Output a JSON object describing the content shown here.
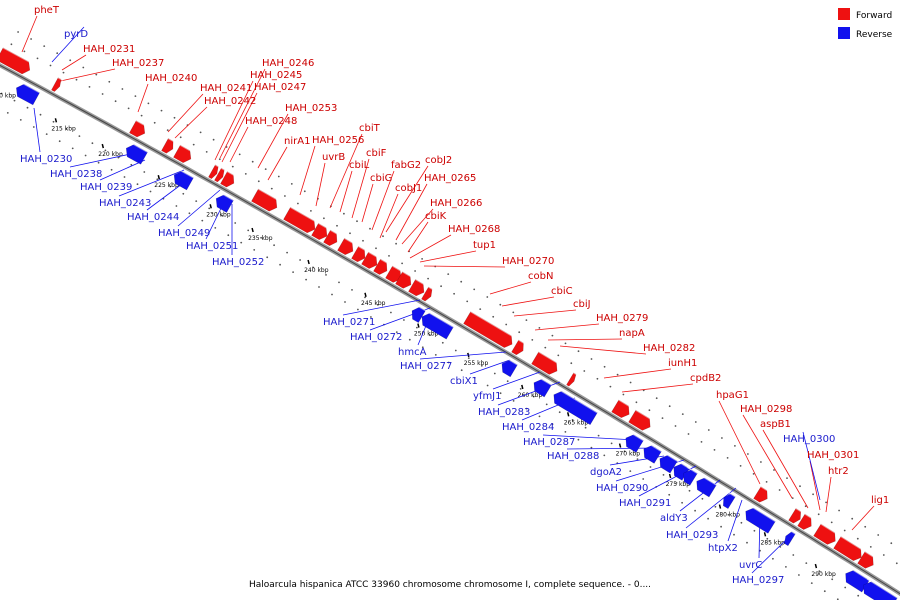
{
  "caption": "Haloarcula hispanica ATCC 33960 chromosome chromosome I, complete sequence. - 0....",
  "legend": [
    {
      "label": "Forward",
      "color": "#ee1111"
    },
    {
      "label": "Reverse",
      "color": "#1111ee"
    }
  ],
  "colors": {
    "forward": "#ee1111",
    "reverse": "#1111ee",
    "backbone": "#888888"
  },
  "ticks": [
    "210 kbp",
    "215 kbp",
    "220 kbp",
    "225 kbp",
    "230 kbp",
    "235 kbp",
    "240 kbp",
    "245 kbp",
    "250 kbp",
    "255 kbp",
    "260 kbp",
    "265 kbp",
    "270 kbp",
    "275 kbp",
    "280 kbp",
    "285 kbp",
    "290 kbp"
  ],
  "forward_labels": [
    "pheT",
    "HAH_0231",
    "HAH_0237",
    "HAH_0240",
    "HAH_0241",
    "HAH_0242",
    "HAH_0246",
    "HAH_0245",
    "HAH_0247",
    "HAH_0248",
    "HAH_0253",
    "nirA1",
    "HAH_0256",
    "uvrB",
    "cbiT",
    "cbiL",
    "cbiF",
    "cbiG",
    "fabG2",
    "cobJ2",
    "cobJ1",
    "HAH_0265",
    "HAH_0266",
    "cbiK",
    "HAH_0268",
    "tup1",
    "HAH_0270",
    "cobN",
    "cbiC",
    "cbiJ",
    "HAH_0279",
    "napA",
    "HAH_0282",
    "iunH1",
    "cpdB2",
    "hpaG1",
    "HAH_0298",
    "aspB1",
    "HAH_0301",
    "htr2",
    "lig1"
  ],
  "reverse_labels": [
    "pyrD",
    "HAH_0230",
    "HAH_0238",
    "HAH_0239",
    "HAH_0243",
    "HAH_0244",
    "HAH_0249",
    "HAH_0251",
    "HAH_0252",
    "HAH_0271",
    "HAH_0272",
    "hmcA",
    "HAH_0277",
    "cbiX1",
    "yfmJ1",
    "HAH_0283",
    "HAH_0284",
    "HAH_0287",
    "HAH_0288",
    "dgoA2",
    "HAH_0290",
    "HAH_0291",
    "aldY3",
    "HAH_0293",
    "htpX2",
    "uvrC",
    "HAH_0297",
    "HAH_0300"
  ]
}
